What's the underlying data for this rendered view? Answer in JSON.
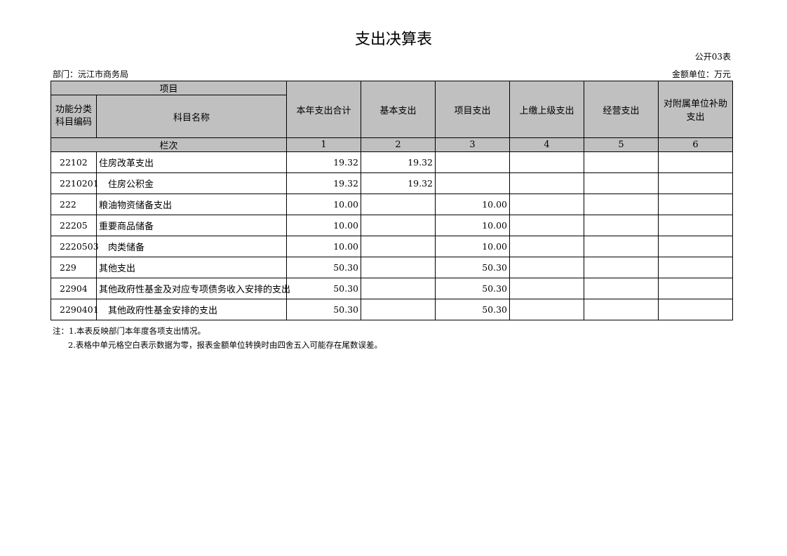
{
  "title": "支出决算表",
  "table_code": "公开03表",
  "department": "部门：沅江市商务局",
  "unit": "金额单位：万元",
  "header": {
    "item": "项目",
    "code_col": "功能分类科目编码",
    "name_col": "科目名称",
    "columns": [
      "本年支出合计",
      "基本支出",
      "项目支出",
      "上缴上级支出",
      "经营支出",
      "对附属单位补助支出"
    ],
    "row_label": "栏次",
    "col_numbers": [
      "1",
      "2",
      "3",
      "4",
      "5",
      "6"
    ]
  },
  "rows": [
    {
      "code": "22102",
      "name": "住房改革支出",
      "indent": false,
      "values": [
        "19.32",
        "19.32",
        "",
        "",
        "",
        ""
      ]
    },
    {
      "code": "2210201",
      "name": "住房公积金",
      "indent": true,
      "values": [
        "19.32",
        "19.32",
        "",
        "",
        "",
        ""
      ]
    },
    {
      "code": "222",
      "name": "粮油物资储备支出",
      "indent": false,
      "values": [
        "10.00",
        "",
        "10.00",
        "",
        "",
        ""
      ]
    },
    {
      "code": "22205",
      "name": "重要商品储备",
      "indent": false,
      "values": [
        "10.00",
        "",
        "10.00",
        "",
        "",
        ""
      ]
    },
    {
      "code": "2220503",
      "name": "肉类储备",
      "indent": true,
      "values": [
        "10.00",
        "",
        "10.00",
        "",
        "",
        ""
      ]
    },
    {
      "code": "229",
      "name": "其他支出",
      "indent": false,
      "values": [
        "50.30",
        "",
        "50.30",
        "",
        "",
        ""
      ]
    },
    {
      "code": "22904",
      "name": "其他政府性基金及对应专项债务收入安排的支出",
      "indent": false,
      "values": [
        "50.30",
        "",
        "50.30",
        "",
        "",
        ""
      ]
    },
    {
      "code": "2290401",
      "name": "其他政府性基金安排的支出",
      "indent": true,
      "values": [
        "50.30",
        "",
        "50.30",
        "",
        "",
        ""
      ]
    }
  ],
  "notes": [
    "注：1.本表反映部门本年度各项支出情况。",
    "2.表格中单元格空白表示数据为零，报表金额单位转换时由四舍五入可能存在尾数误差。"
  ]
}
